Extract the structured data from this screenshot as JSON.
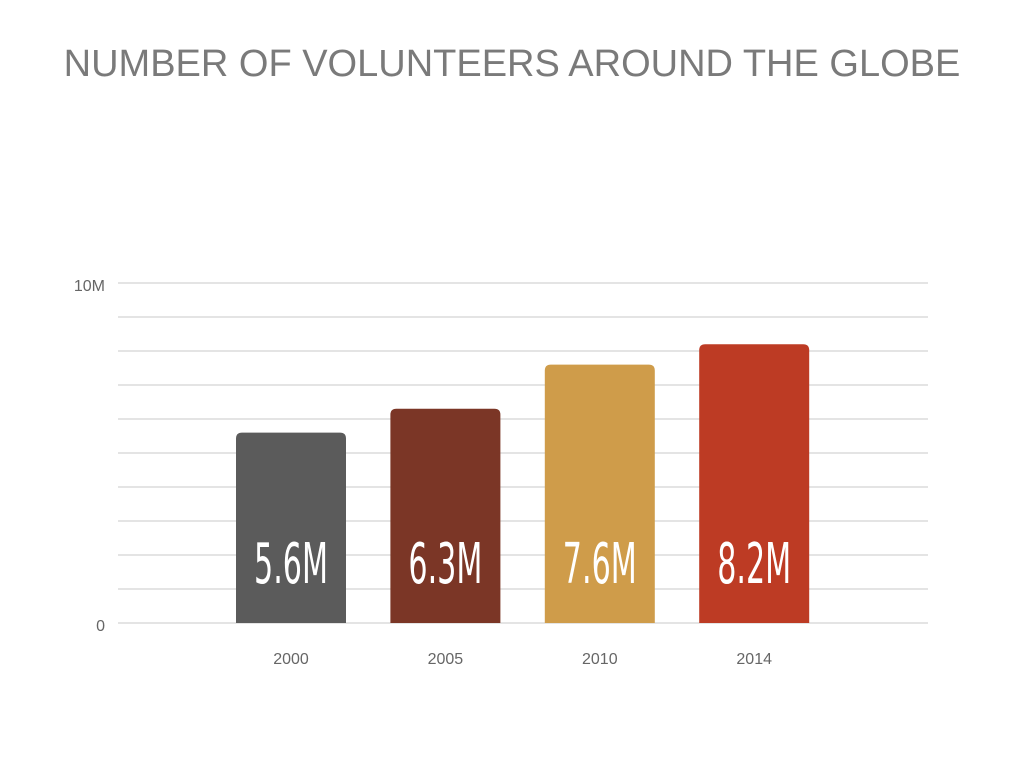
{
  "chart_data": {
    "type": "bar",
    "title": "NUMBER OF VOLUNTEERS AROUND THE GLOBE",
    "categories": [
      "2000",
      "2005",
      "2010",
      "2014"
    ],
    "values": [
      5600000,
      6300000,
      7600000,
      8200000
    ],
    "value_labels": [
      "5.6M",
      "6.3M",
      "7.6M",
      "8.2M"
    ],
    "colors": [
      "#5b5b5b",
      "#7b3626",
      "#cf9c4a",
      "#bd3b24"
    ],
    "ylim": [
      0,
      10000000
    ],
    "yticks": [
      0,
      {
        "value": 1000000,
        "label": null
      },
      {
        "value": 2000000,
        "label": null
      },
      {
        "value": 3000000,
        "label": null
      },
      {
        "value": 4000000,
        "label": null
      },
      {
        "value": 5000000,
        "label": null
      },
      {
        "value": 6000000,
        "label": null
      },
      {
        "value": 7000000,
        "label": null
      },
      {
        "value": 8000000,
        "label": null
      },
      {
        "value": 9000000,
        "label": null
      },
      {
        "value": 10000000,
        "label": "10M"
      }
    ],
    "grid": true
  }
}
